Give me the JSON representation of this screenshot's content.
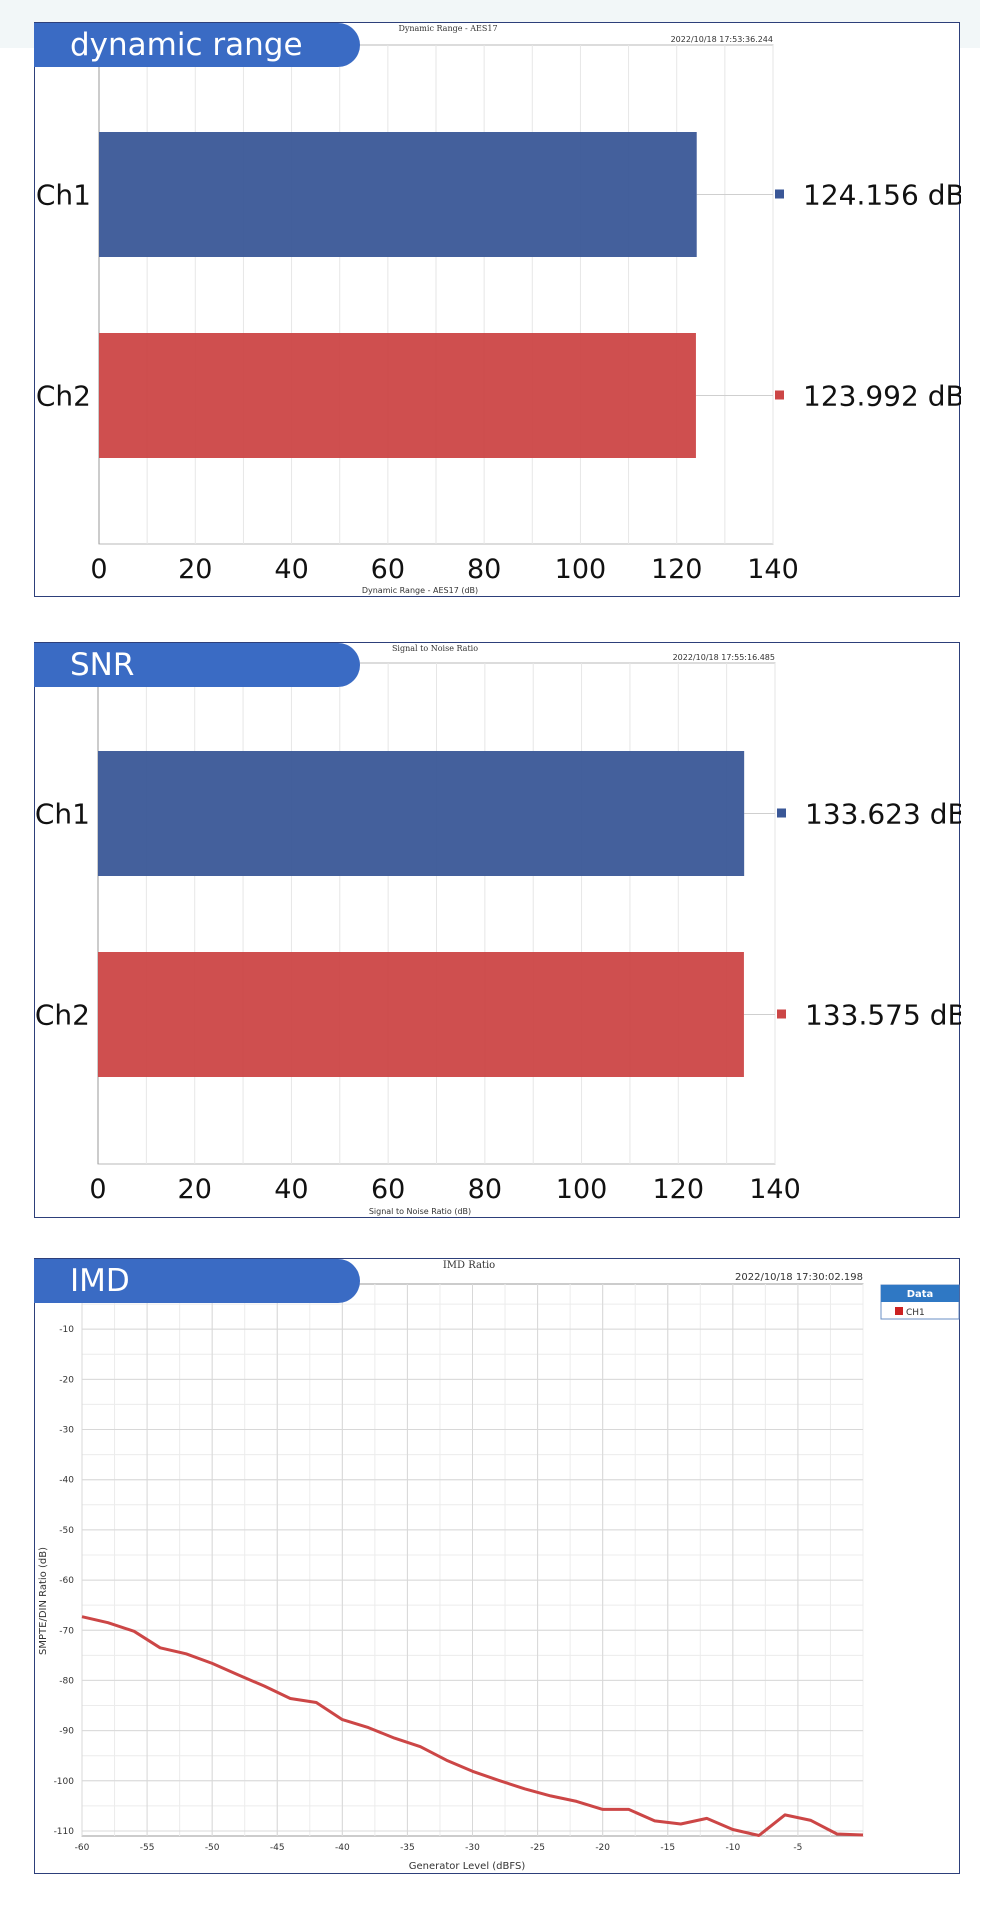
{
  "charts": {
    "dr": {
      "label": "dynamic range",
      "title": "Dynamic Range - AES17",
      "timestamp": "2022/10/18 17:53:36.244",
      "xlabel": "Dynamic Range - AES17 (dB)"
    },
    "snr": {
      "label": "SNR",
      "title": "Signal to Noise Ratio",
      "timestamp": "2022/10/18 17:55:16.485",
      "xlabel": "Signal to Noise Ratio (dB)"
    },
    "imd": {
      "label": "IMD",
      "title": "IMD Ratio",
      "timestamp": "2022/10/18 17:30:02.198",
      "xlabel": "Generator Level (dBFS)",
      "ylabel": "SMPTE/DIN Ratio (dB)",
      "legend_title": "Data",
      "legend_item": "CH1"
    }
  },
  "chart_data": [
    {
      "type": "bar",
      "orientation": "horizontal",
      "title": "Dynamic Range - AES17",
      "categories": [
        "Ch1",
        "Ch2"
      ],
      "values": [
        124.156,
        123.992
      ],
      "value_labels": [
        "124.156 dB",
        "123.992 dB"
      ],
      "colors": [
        "#3a5797",
        "#cc4646"
      ],
      "xlabel": "Dynamic Range - AES17 (dB)",
      "xlim": [
        0,
        140
      ],
      "xticks": [
        0,
        20,
        40,
        60,
        80,
        100,
        120,
        140
      ],
      "grid": true
    },
    {
      "type": "bar",
      "orientation": "horizontal",
      "title": "Signal to Noise Ratio",
      "categories": [
        "Ch1",
        "Ch2"
      ],
      "values": [
        133.623,
        133.575
      ],
      "value_labels": [
        "133.623 dB",
        "133.575 dB"
      ],
      "colors": [
        "#3a5797",
        "#cc4646"
      ],
      "xlabel": "Signal to Noise Ratio (dB)",
      "xlim": [
        0,
        140
      ],
      "xticks": [
        0,
        20,
        40,
        60,
        80,
        100,
        120,
        140
      ],
      "grid": true
    },
    {
      "type": "line",
      "title": "IMD Ratio",
      "xlabel": "Generator Level (dBFS)",
      "ylabel": "SMPTE/DIN Ratio (dB)",
      "xlim": [
        -60,
        0
      ],
      "ylim": [
        -111,
        -1
      ],
      "xticks": [
        -60,
        -55,
        -50,
        -45,
        -40,
        -35,
        -30,
        -25,
        -20,
        -15,
        -10,
        -5
      ],
      "yticks": [
        -10,
        -20,
        -30,
        -40,
        -50,
        -60,
        -70,
        -80,
        -90,
        -100,
        -110
      ],
      "legend": "right",
      "grid": true,
      "series": [
        {
          "name": "CH1",
          "color": "#cc4646",
          "x": [
            -60,
            -58,
            -56,
            -54,
            -52,
            -50,
            -48,
            -46,
            -44,
            -42,
            -40,
            -38,
            -36,
            -34,
            -32,
            -30,
            -28,
            -26,
            -24,
            -22,
            -20,
            -18,
            -16,
            -14,
            -12,
            -10,
            -8,
            -6,
            -4,
            -2,
            0
          ],
          "y": [
            -67.3,
            -68.5,
            -70.2,
            -73.5,
            -74.7,
            -76.6,
            -78.9,
            -81.1,
            -83.6,
            -84.4,
            -87.8,
            -89.4,
            -91.5,
            -93.2,
            -95.9,
            -98.1,
            -99.9,
            -101.6,
            -103.0,
            -104.1,
            -105.7,
            -105.7,
            -108.0,
            -108.6,
            -107.5,
            -109.7,
            -110.9,
            -106.8,
            -107.9,
            -110.6,
            -110.8
          ]
        }
      ]
    }
  ]
}
